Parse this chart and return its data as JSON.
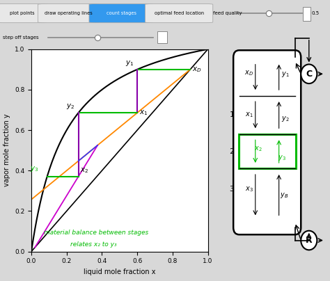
{
  "bg_color": "#d8d8d8",
  "plot_bg": "#ffffff",
  "tab_labels": [
    "plot points",
    "draw operating lines",
    "count stages",
    "optimal feed location"
  ],
  "active_tab": 2,
  "feed_quality_label": "feed quality",
  "feed_quality_val": "0.5",
  "step_off_label": "step off stages",
  "green_color": "#00bb00",
  "magenta_color": "#cc00cc",
  "orange_color": "#ff8800",
  "blue_color": "#3333ff",
  "purple_color": "#8800aa",
  "alpha_vle": 6.0,
  "xD": 0.9,
  "xB": 0.02,
  "zF": 0.45,
  "q": 0.5,
  "R": 2.5,
  "annotation_text1": "material balance between stages",
  "annotation_text2": "relates x₂ to y₃"
}
